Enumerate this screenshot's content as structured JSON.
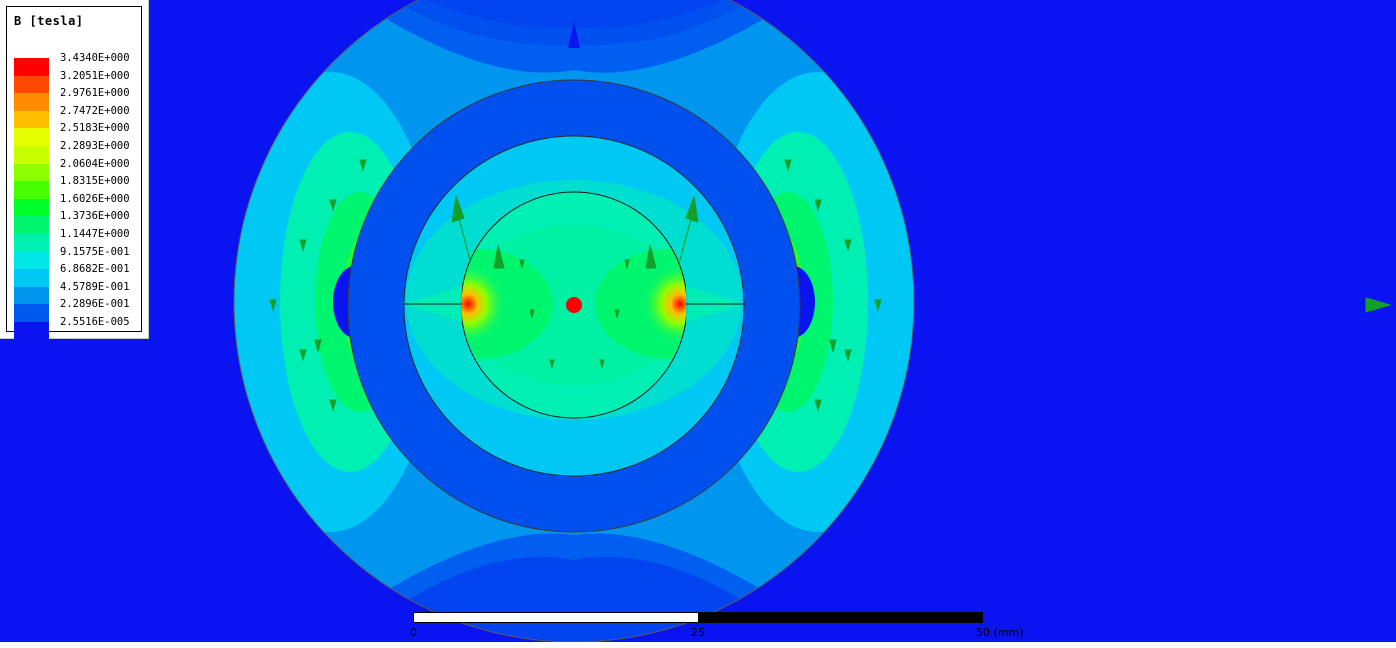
{
  "legend": {
    "title": "B [tesla]",
    "entries": [
      {
        "label": "3.4340E+000",
        "color": "#ff0000"
      },
      {
        "label": "3.2051E+000",
        "color": "#ff4800"
      },
      {
        "label": "2.9761E+000",
        "color": "#ff8c00"
      },
      {
        "label": "2.7472E+000",
        "color": "#ffbf00"
      },
      {
        "label": "2.5183E+000",
        "color": "#e6ff00"
      },
      {
        "label": "2.2893E+000",
        "color": "#c8ff00"
      },
      {
        "label": "2.0604E+000",
        "color": "#8cff00"
      },
      {
        "label": "1.8315E+000",
        "color": "#46ff00"
      },
      {
        "label": "1.6026E+000",
        "color": "#00ff28"
      },
      {
        "label": "1.3736E+000",
        "color": "#00f56e"
      },
      {
        "label": "1.1447E+000",
        "color": "#00f0b4"
      },
      {
        "label": "9.1575E-001",
        "color": "#00e6e6"
      },
      {
        "label": "6.8682E-001",
        "color": "#00c8f5"
      },
      {
        "label": "4.5789E-001",
        "color": "#0096f0"
      },
      {
        "label": "2.2896E-001",
        "color": "#005af0"
      },
      {
        "label": "2.5516E-005",
        "color": "#0a14f0"
      }
    ]
  },
  "scale_bar": {
    "start_label": "0",
    "mid_label": "25",
    "end_label": "50 (mm)"
  },
  "colors": {
    "background": "#0a14f0",
    "outer_ring": "#0050f0",
    "light_blue": "#00c8f5",
    "mid_blue": "#0096f0",
    "green": "#00f56e",
    "cyan_green": "#00f0b4",
    "yellow": "#e6ff00",
    "red": "#ff0000",
    "arrow_green": "#14a028"
  }
}
